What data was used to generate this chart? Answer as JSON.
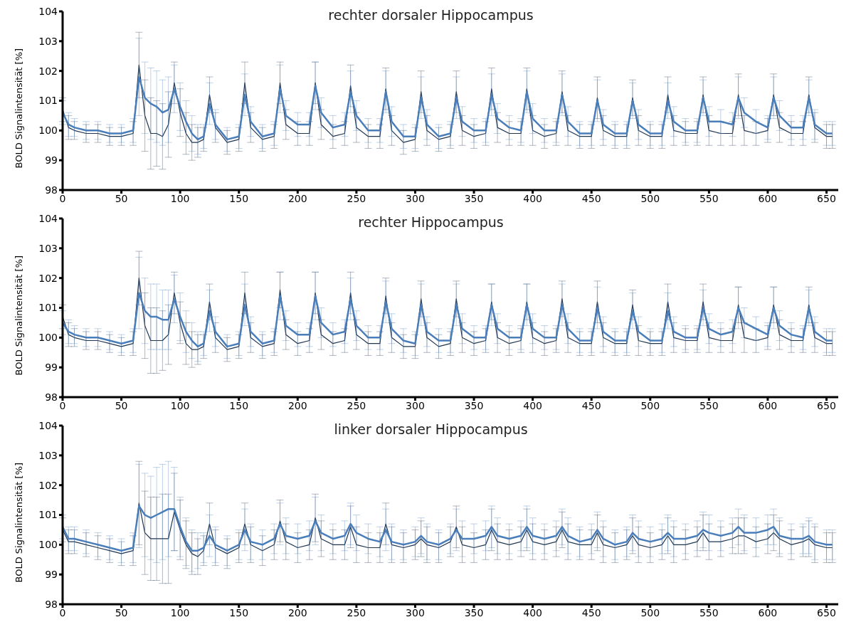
{
  "chart_data": [
    {
      "type": "line",
      "title": "rechter dorsaler Hippocampus",
      "ylabel": "BOLD Signalintensität [%]",
      "xlim": [
        0,
        660
      ],
      "xticks": [
        0,
        50,
        100,
        150,
        200,
        250,
        300,
        350,
        400,
        450,
        500,
        550,
        600,
        650
      ],
      "ylim": [
        98,
        104
      ],
      "yticks": [
        98,
        99,
        100,
        101,
        102,
        103,
        104
      ],
      "grid": false,
      "legend": false,
      "x": [
        0,
        5,
        10,
        20,
        30,
        40,
        50,
        60,
        65,
        70,
        75,
        80,
        85,
        90,
        95,
        100,
        105,
        110,
        115,
        120,
        125,
        130,
        140,
        150,
        155,
        160,
        170,
        180,
        185,
        190,
        200,
        210,
        215,
        220,
        230,
        240,
        245,
        250,
        260,
        270,
        275,
        280,
        290,
        300,
        305,
        310,
        320,
        330,
        335,
        340,
        350,
        360,
        365,
        370,
        380,
        390,
        395,
        400,
        410,
        420,
        425,
        430,
        440,
        450,
        455,
        460,
        470,
        480,
        485,
        490,
        500,
        510,
        515,
        520,
        530,
        540,
        545,
        550,
        560,
        570,
        575,
        580,
        590,
        600,
        605,
        610,
        620,
        630,
        635,
        640,
        650,
        655
      ],
      "series": [
        {
          "color": "#1f3550",
          "values": [
            100.7,
            100.1,
            100.0,
            99.9,
            99.9,
            99.8,
            99.8,
            99.9,
            102.2,
            100.5,
            99.9,
            99.9,
            99.8,
            100.2,
            101.6,
            100.6,
            99.9,
            99.6,
            99.6,
            99.7,
            101.2,
            100.1,
            99.6,
            99.7,
            101.6,
            100.1,
            99.7,
            99.8,
            101.6,
            100.2,
            99.9,
            99.9,
            101.6,
            100.2,
            99.8,
            99.9,
            101.5,
            100.1,
            99.8,
            99.8,
            101.4,
            100.0,
            99.6,
            99.7,
            101.3,
            100.0,
            99.7,
            99.8,
            101.3,
            100.0,
            99.8,
            99.9,
            101.4,
            100.1,
            99.9,
            99.9,
            101.4,
            100.0,
            99.8,
            99.9,
            101.3,
            100.0,
            99.8,
            99.8,
            101.1,
            100.0,
            99.8,
            99.8,
            101.1,
            100.0,
            99.8,
            99.8,
            101.2,
            100.0,
            99.9,
            99.9,
            101.2,
            100.0,
            99.9,
            99.9,
            101.2,
            100.0,
            99.9,
            100.0,
            101.2,
            100.1,
            99.9,
            99.9,
            101.2,
            100.1,
            99.8,
            99.8
          ],
          "errors": [
            0.4,
            0.4,
            0.3,
            0.3,
            0.3,
            0.3,
            0.3,
            0.4,
            1.1,
            1.2,
            1.2,
            1.1,
            1.1,
            1.1,
            0.7,
            0.8,
            0.7,
            0.6,
            0.5,
            0.4,
            0.6,
            0.5,
            0.4,
            0.4,
            0.7,
            0.5,
            0.4,
            0.4,
            0.7,
            0.5,
            0.4,
            0.4,
            0.7,
            0.5,
            0.4,
            0.4,
            0.7,
            0.5,
            0.4,
            0.4,
            0.7,
            0.5,
            0.4,
            0.4,
            0.7,
            0.5,
            0.4,
            0.4,
            0.7,
            0.5,
            0.4,
            0.4,
            0.7,
            0.5,
            0.4,
            0.4,
            0.7,
            0.5,
            0.4,
            0.4,
            0.7,
            0.5,
            0.4,
            0.4,
            0.7,
            0.5,
            0.4,
            0.4,
            0.6,
            0.5,
            0.4,
            0.4,
            0.6,
            0.5,
            0.4,
            0.4,
            0.6,
            0.5,
            0.4,
            0.4,
            0.7,
            0.5,
            0.4,
            0.4,
            0.7,
            0.5,
            0.4,
            0.4,
            0.6,
            0.5,
            0.4,
            0.4
          ]
        },
        {
          "color": "#4a7ebb",
          "values": [
            100.6,
            100.2,
            100.1,
            100.0,
            100.0,
            99.9,
            99.9,
            100.0,
            101.8,
            101.1,
            100.9,
            100.8,
            100.6,
            100.7,
            101.4,
            100.8,
            100.3,
            99.9,
            99.7,
            99.8,
            100.9,
            100.2,
            99.7,
            99.8,
            101.2,
            100.3,
            99.8,
            99.9,
            101.4,
            100.5,
            100.2,
            100.2,
            101.5,
            100.6,
            100.1,
            100.2,
            101.3,
            100.5,
            100.0,
            100.0,
            101.3,
            100.3,
            99.8,
            99.8,
            101.1,
            100.2,
            99.8,
            99.9,
            101.1,
            100.3,
            100.0,
            100.0,
            101.2,
            100.4,
            100.1,
            100.0,
            101.3,
            100.4,
            100.0,
            100.0,
            101.2,
            100.3,
            99.9,
            99.9,
            101.0,
            100.2,
            99.9,
            99.9,
            101.0,
            100.2,
            99.9,
            99.9,
            101.0,
            100.3,
            100.0,
            100.0,
            101.1,
            100.3,
            100.3,
            100.2,
            101.1,
            100.6,
            100.3,
            100.1,
            101.1,
            100.5,
            100.1,
            100.1,
            101.1,
            100.2,
            99.9,
            99.9
          ],
          "errors": [
            0.4,
            0.4,
            0.3,
            0.3,
            0.3,
            0.3,
            0.3,
            0.4,
            1.3,
            1.2,
            1.2,
            1.2,
            1.1,
            1.1,
            0.8,
            0.8,
            0.7,
            0.6,
            0.5,
            0.4,
            0.7,
            0.5,
            0.4,
            0.4,
            0.7,
            0.5,
            0.4,
            0.4,
            0.8,
            0.5,
            0.4,
            0.4,
            0.8,
            0.5,
            0.4,
            0.4,
            0.7,
            0.5,
            0.4,
            0.4,
            0.7,
            0.5,
            0.4,
            0.4,
            0.7,
            0.5,
            0.4,
            0.4,
            0.7,
            0.5,
            0.4,
            0.4,
            0.7,
            0.5,
            0.4,
            0.4,
            0.7,
            0.5,
            0.4,
            0.4,
            0.7,
            0.5,
            0.4,
            0.4,
            0.7,
            0.5,
            0.4,
            0.4,
            0.6,
            0.5,
            0.4,
            0.4,
            0.6,
            0.5,
            0.4,
            0.4,
            0.6,
            0.5,
            0.4,
            0.4,
            0.7,
            0.5,
            0.4,
            0.4,
            0.7,
            0.5,
            0.4,
            0.4,
            0.6,
            0.5,
            0.4,
            0.4
          ]
        }
      ]
    },
    {
      "type": "line",
      "title": "rechter Hippocampus",
      "ylabel": "BOLD Signalintensität [%]",
      "xlim": [
        0,
        660
      ],
      "xticks": [
        0,
        50,
        100,
        150,
        200,
        250,
        300,
        350,
        400,
        450,
        500,
        550,
        600,
        650
      ],
      "ylim": [
        98,
        104
      ],
      "yticks": [
        98,
        99,
        100,
        101,
        102,
        103,
        104
      ],
      "grid": false,
      "legend": false,
      "x": [
        0,
        5,
        10,
        20,
        30,
        40,
        50,
        60,
        65,
        70,
        75,
        80,
        85,
        90,
        95,
        100,
        105,
        110,
        115,
        120,
        125,
        130,
        140,
        150,
        155,
        160,
        170,
        180,
        185,
        190,
        200,
        210,
        215,
        220,
        230,
        240,
        245,
        250,
        260,
        270,
        275,
        280,
        290,
        300,
        305,
        310,
        320,
        330,
        335,
        340,
        350,
        360,
        365,
        370,
        380,
        390,
        395,
        400,
        410,
        420,
        425,
        430,
        440,
        450,
        455,
        460,
        470,
        480,
        485,
        490,
        500,
        510,
        515,
        520,
        530,
        540,
        545,
        550,
        560,
        570,
        575,
        580,
        590,
        600,
        605,
        610,
        620,
        630,
        635,
        640,
        650,
        655
      ],
      "series": [
        {
          "color": "#1f3550",
          "values": [
            100.7,
            100.1,
            100.0,
            99.9,
            99.9,
            99.8,
            99.7,
            99.8,
            102.0,
            100.4,
            99.9,
            99.9,
            99.9,
            100.1,
            101.5,
            100.5,
            99.8,
            99.6,
            99.6,
            99.7,
            101.2,
            100.0,
            99.6,
            99.7,
            101.5,
            100.0,
            99.7,
            99.8,
            101.6,
            100.1,
            99.8,
            99.9,
            101.5,
            100.1,
            99.8,
            99.9,
            101.5,
            100.1,
            99.8,
            99.8,
            101.4,
            100.0,
            99.7,
            99.7,
            101.3,
            100.0,
            99.7,
            99.8,
            101.3,
            100.0,
            99.8,
            99.9,
            101.2,
            100.0,
            99.8,
            99.9,
            101.2,
            100.0,
            99.8,
            99.9,
            101.3,
            100.0,
            99.8,
            99.8,
            101.2,
            100.0,
            99.8,
            99.8,
            101.1,
            99.9,
            99.8,
            99.8,
            101.2,
            100.0,
            99.9,
            99.9,
            101.2,
            100.0,
            99.9,
            99.9,
            101.1,
            100.0,
            99.9,
            100.0,
            101.1,
            100.1,
            99.9,
            99.9,
            101.1,
            100.0,
            99.8,
            99.8
          ],
          "errors": [
            0.4,
            0.4,
            0.3,
            0.3,
            0.3,
            0.3,
            0.3,
            0.4,
            0.9,
            1.1,
            1.1,
            1.1,
            1.0,
            1.0,
            0.7,
            0.7,
            0.7,
            0.6,
            0.5,
            0.4,
            0.6,
            0.5,
            0.4,
            0.4,
            0.7,
            0.5,
            0.4,
            0.4,
            0.6,
            0.5,
            0.4,
            0.4,
            0.7,
            0.5,
            0.4,
            0.4,
            0.7,
            0.5,
            0.4,
            0.4,
            0.6,
            0.5,
            0.4,
            0.4,
            0.6,
            0.5,
            0.4,
            0.4,
            0.6,
            0.5,
            0.4,
            0.4,
            0.6,
            0.5,
            0.4,
            0.4,
            0.6,
            0.5,
            0.4,
            0.4,
            0.6,
            0.5,
            0.4,
            0.4,
            0.7,
            0.5,
            0.4,
            0.4,
            0.5,
            0.5,
            0.4,
            0.4,
            0.6,
            0.5,
            0.4,
            0.4,
            0.6,
            0.5,
            0.4,
            0.4,
            0.6,
            0.5,
            0.4,
            0.4,
            0.6,
            0.5,
            0.4,
            0.4,
            0.6,
            0.5,
            0.4,
            0.4
          ]
        },
        {
          "color": "#4a7ebb",
          "values": [
            100.5,
            100.2,
            100.1,
            100.0,
            100.0,
            99.9,
            99.8,
            99.9,
            101.5,
            100.9,
            100.7,
            100.7,
            100.6,
            100.6,
            101.3,
            100.7,
            100.2,
            99.9,
            99.7,
            99.8,
            100.9,
            100.2,
            99.7,
            99.8,
            101.1,
            100.2,
            99.8,
            99.9,
            101.4,
            100.4,
            100.1,
            100.1,
            101.4,
            100.5,
            100.1,
            100.2,
            101.3,
            100.4,
            100.0,
            100.0,
            101.2,
            100.3,
            99.9,
            99.8,
            101.1,
            100.2,
            99.9,
            99.9,
            101.1,
            100.3,
            100.0,
            100.0,
            101.1,
            100.3,
            100.0,
            100.0,
            101.1,
            100.3,
            100.0,
            100.0,
            101.1,
            100.3,
            99.9,
            99.9,
            101.0,
            100.2,
            99.9,
            99.9,
            100.9,
            100.2,
            99.9,
            99.9,
            100.9,
            100.2,
            100.0,
            100.0,
            101.0,
            100.3,
            100.1,
            100.2,
            101.0,
            100.5,
            100.3,
            100.1,
            101.0,
            100.4,
            100.1,
            100.0,
            101.0,
            100.2,
            99.9,
            99.9
          ],
          "errors": [
            0.4,
            0.4,
            0.3,
            0.3,
            0.3,
            0.3,
            0.3,
            0.4,
            1.2,
            1.1,
            1.1,
            1.1,
            1.0,
            1.0,
            0.8,
            0.8,
            0.7,
            0.6,
            0.5,
            0.4,
            0.7,
            0.5,
            0.4,
            0.4,
            0.7,
            0.5,
            0.4,
            0.4,
            0.8,
            0.5,
            0.4,
            0.4,
            0.8,
            0.5,
            0.4,
            0.4,
            0.7,
            0.5,
            0.4,
            0.4,
            0.7,
            0.5,
            0.4,
            0.4,
            0.7,
            0.5,
            0.4,
            0.4,
            0.7,
            0.5,
            0.4,
            0.4,
            0.7,
            0.5,
            0.4,
            0.4,
            0.7,
            0.5,
            0.4,
            0.4,
            0.7,
            0.5,
            0.4,
            0.4,
            0.7,
            0.5,
            0.4,
            0.4,
            0.6,
            0.5,
            0.4,
            0.4,
            0.6,
            0.5,
            0.4,
            0.4,
            0.6,
            0.5,
            0.4,
            0.4,
            0.7,
            0.5,
            0.4,
            0.4,
            0.7,
            0.5,
            0.4,
            0.4,
            0.6,
            0.5,
            0.4,
            0.4
          ]
        }
      ]
    },
    {
      "type": "line",
      "title": "linker dorsaler Hippocampus",
      "ylabel": "BOLD Signalintensität [%]",
      "xlim": [
        0,
        660
      ],
      "xticks": [
        0,
        50,
        100,
        150,
        200,
        250,
        300,
        350,
        400,
        450,
        500,
        550,
        600,
        650
      ],
      "ylim": [
        98,
        104
      ],
      "yticks": [
        98,
        99,
        100,
        101,
        102,
        103,
        104
      ],
      "grid": false,
      "legend": false,
      "x": [
        0,
        5,
        10,
        20,
        30,
        40,
        50,
        60,
        65,
        70,
        75,
        80,
        85,
        90,
        95,
        100,
        105,
        110,
        115,
        120,
        125,
        130,
        140,
        150,
        155,
        160,
        170,
        180,
        185,
        190,
        200,
        210,
        215,
        220,
        230,
        240,
        245,
        250,
        260,
        270,
        275,
        280,
        290,
        300,
        305,
        310,
        320,
        330,
        335,
        340,
        350,
        360,
        365,
        370,
        380,
        390,
        395,
        400,
        410,
        420,
        425,
        430,
        440,
        450,
        455,
        460,
        470,
        480,
        485,
        490,
        500,
        510,
        515,
        520,
        530,
        540,
        545,
        550,
        560,
        570,
        575,
        580,
        590,
        600,
        605,
        610,
        620,
        630,
        635,
        640,
        650,
        655
      ],
      "series": [
        {
          "color": "#1f3550",
          "values": [
            100.5,
            100.1,
            100.1,
            100.0,
            99.9,
            99.8,
            99.7,
            99.8,
            101.4,
            100.4,
            100.2,
            100.2,
            100.2,
            100.2,
            101.1,
            100.5,
            100.0,
            99.7,
            99.6,
            99.8,
            100.7,
            99.9,
            99.7,
            99.9,
            100.7,
            100.0,
            99.8,
            100.0,
            100.8,
            100.1,
            99.9,
            100.0,
            100.9,
            100.2,
            100.0,
            100.0,
            100.6,
            100.0,
            99.9,
            99.9,
            100.7,
            100.0,
            99.9,
            100.0,
            100.2,
            100.0,
            99.9,
            100.1,
            100.6,
            100.0,
            99.9,
            100.0,
            100.5,
            100.1,
            100.0,
            100.1,
            100.5,
            100.1,
            100.0,
            100.1,
            100.5,
            100.1,
            100.0,
            100.0,
            100.4,
            100.0,
            99.9,
            100.0,
            100.3,
            100.0,
            99.9,
            100.0,
            100.3,
            100.0,
            100.0,
            100.1,
            100.4,
            100.1,
            100.1,
            100.2,
            100.3,
            100.3,
            100.1,
            100.2,
            100.4,
            100.2,
            100.0,
            100.1,
            100.2,
            100.0,
            99.9,
            99.9
          ],
          "errors": [
            0.4,
            0.4,
            0.4,
            0.4,
            0.4,
            0.4,
            0.4,
            0.5,
            1.4,
            1.4,
            1.4,
            1.4,
            1.5,
            1.5,
            1.3,
            1.0,
            0.8,
            0.7,
            0.6,
            0.5,
            0.7,
            0.6,
            0.5,
            0.5,
            0.7,
            0.6,
            0.5,
            0.5,
            0.7,
            0.6,
            0.5,
            0.5,
            0.8,
            0.6,
            0.5,
            0.5,
            0.7,
            0.6,
            0.5,
            0.5,
            0.7,
            0.6,
            0.5,
            0.5,
            0.6,
            0.6,
            0.5,
            0.5,
            0.7,
            0.6,
            0.5,
            0.5,
            0.7,
            0.6,
            0.5,
            0.5,
            0.7,
            0.6,
            0.5,
            0.5,
            0.6,
            0.6,
            0.5,
            0.5,
            0.6,
            0.6,
            0.5,
            0.5,
            0.6,
            0.6,
            0.5,
            0.5,
            0.6,
            0.6,
            0.5,
            0.5,
            0.6,
            0.6,
            0.5,
            0.5,
            0.6,
            0.6,
            0.5,
            0.5,
            0.6,
            0.6,
            0.5,
            0.5,
            0.6,
            0.6,
            0.5,
            0.5
          ]
        },
        {
          "color": "#4a7ebb",
          "values": [
            100.6,
            100.2,
            100.2,
            100.1,
            100.0,
            99.9,
            99.8,
            99.9,
            101.3,
            101.0,
            100.9,
            101.0,
            101.1,
            101.2,
            101.2,
            100.6,
            100.1,
            99.8,
            99.8,
            99.9,
            100.3,
            100.0,
            99.8,
            100.0,
            100.5,
            100.1,
            100.0,
            100.2,
            100.7,
            100.3,
            100.2,
            100.3,
            100.8,
            100.4,
            100.2,
            100.3,
            100.7,
            100.4,
            100.2,
            100.1,
            100.5,
            100.1,
            100.0,
            100.1,
            100.3,
            100.1,
            100.0,
            100.2,
            100.5,
            100.2,
            100.2,
            100.3,
            100.6,
            100.3,
            100.2,
            100.3,
            100.6,
            100.3,
            100.2,
            100.3,
            100.6,
            100.3,
            100.1,
            100.2,
            100.5,
            100.2,
            100.0,
            100.1,
            100.4,
            100.2,
            100.1,
            100.2,
            100.4,
            100.2,
            100.2,
            100.3,
            100.5,
            100.4,
            100.3,
            100.4,
            100.6,
            100.4,
            100.4,
            100.5,
            100.6,
            100.3,
            100.2,
            100.2,
            100.3,
            100.1,
            100.0,
            100.0
          ],
          "errors": [
            0.4,
            0.4,
            0.4,
            0.4,
            0.4,
            0.4,
            0.4,
            0.5,
            1.4,
            1.4,
            1.4,
            1.6,
            1.6,
            1.6,
            1.4,
            1.0,
            0.8,
            0.7,
            0.6,
            0.5,
            0.7,
            0.6,
            0.5,
            0.5,
            0.7,
            0.6,
            0.5,
            0.5,
            0.7,
            0.6,
            0.5,
            0.5,
            0.8,
            0.6,
            0.5,
            0.5,
            0.7,
            0.6,
            0.5,
            0.5,
            0.7,
            0.6,
            0.5,
            0.5,
            0.6,
            0.6,
            0.5,
            0.5,
            0.7,
            0.6,
            0.5,
            0.5,
            0.7,
            0.6,
            0.5,
            0.5,
            0.7,
            0.6,
            0.5,
            0.5,
            0.6,
            0.6,
            0.5,
            0.5,
            0.6,
            0.6,
            0.5,
            0.5,
            0.6,
            0.6,
            0.5,
            0.5,
            0.6,
            0.6,
            0.5,
            0.5,
            0.6,
            0.6,
            0.5,
            0.5,
            0.6,
            0.6,
            0.5,
            0.5,
            0.6,
            0.6,
            0.5,
            0.5,
            0.6,
            0.6,
            0.5,
            0.5
          ]
        }
      ]
    }
  ]
}
